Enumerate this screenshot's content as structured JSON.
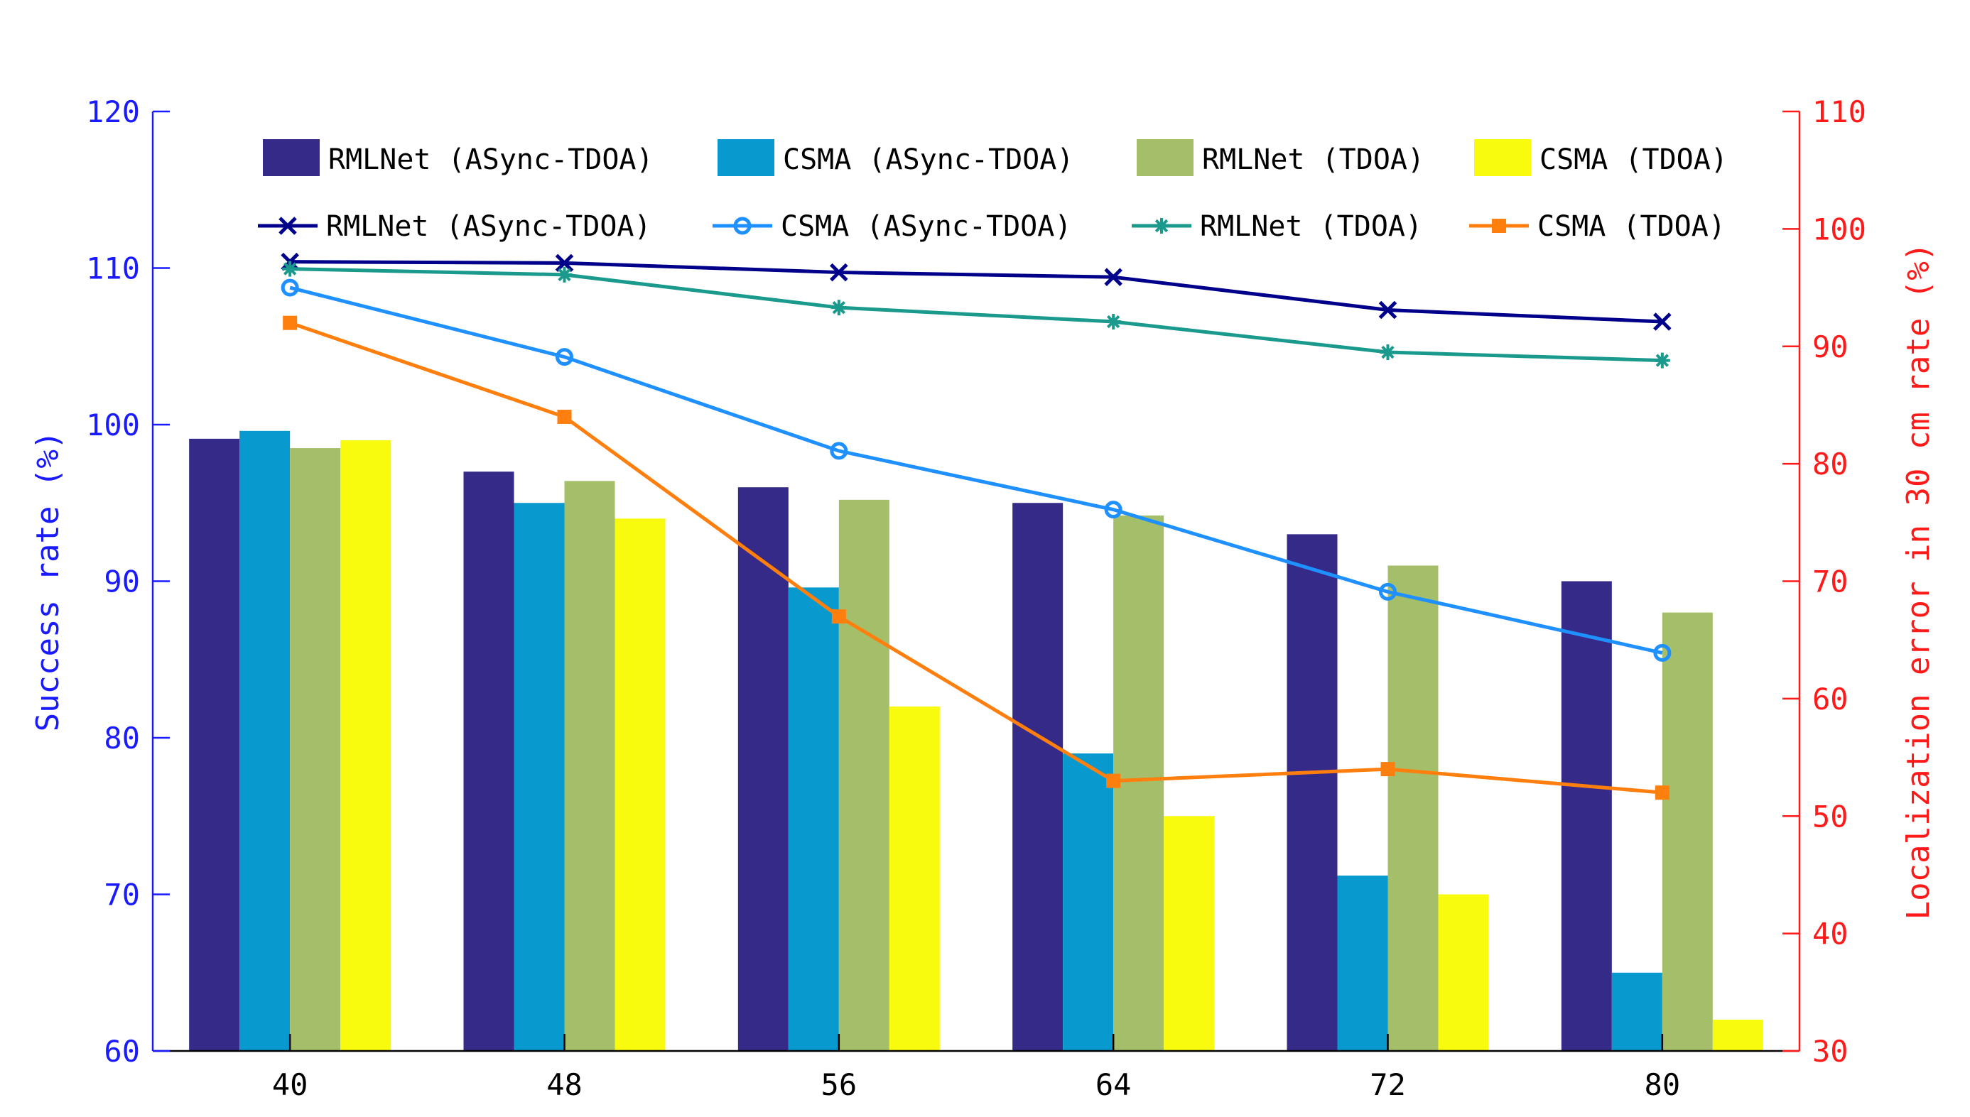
{
  "chart_data": {
    "type": "bar",
    "categories": [
      "40",
      "48",
      "56",
      "64",
      "72",
      "80"
    ],
    "y_left": {
      "label": "Success rate (%)",
      "ylim": [
        60,
        120
      ],
      "ticks": [
        "60",
        "70",
        "80",
        "90",
        "100",
        "110",
        "120"
      ],
      "color": "#1a1aff"
    },
    "y_right": {
      "label": "Localization error in 30 cm rate (%)",
      "ylim": [
        30,
        110
      ],
      "ticks": [
        "30",
        "40",
        "50",
        "60",
        "70",
        "80",
        "90",
        "100",
        "110"
      ],
      "color": "#ff1a1a"
    },
    "bar_series": [
      {
        "name": "RMLNet (ASync-TDOA)",
        "color": "#352a87",
        "values": [
          99.1,
          97.0,
          96.0,
          95.0,
          93.0,
          90.0
        ]
      },
      {
        "name": "CSMA (ASync-TDOA)",
        "color": "#0899ce",
        "values": [
          99.6,
          95.0,
          89.6,
          79.0,
          71.2,
          65.0
        ]
      },
      {
        "name": "RMLNet (TDOA)",
        "color": "#a5be6a",
        "values": [
          98.5,
          96.4,
          95.2,
          94.2,
          91.0,
          88.0
        ]
      },
      {
        "name": "CSMA (TDOA)",
        "color": "#f9fb0e",
        "values": [
          99.0,
          94.0,
          82.0,
          75.0,
          70.0,
          62.0
        ]
      }
    ],
    "line_series": [
      {
        "name": "RMLNet (ASync-TDOA)",
        "color": "#00008b",
        "marker": "x",
        "axis": "right",
        "values": [
          97.2,
          97.1,
          96.3,
          95.9,
          93.1,
          92.1
        ]
      },
      {
        "name": "CSMA (ASync-TDOA)",
        "color": "#1e90ff",
        "marker": "circle",
        "axis": "right",
        "values": [
          95.0,
          89.1,
          81.1,
          76.1,
          69.1,
          63.9
        ]
      },
      {
        "name": "RMLNet (TDOA)",
        "color": "#1a9a8c",
        "marker": "star",
        "axis": "right",
        "values": [
          96.6,
          96.1,
          93.3,
          92.1,
          89.5,
          88.8
        ]
      },
      {
        "name": "CSMA (TDOA)",
        "color": "#ff7f0e",
        "marker": "square",
        "axis": "right",
        "values": [
          92.0,
          84.0,
          67.0,
          53.0,
          54.0,
          52.0
        ]
      }
    ],
    "legend_position": "top"
  }
}
